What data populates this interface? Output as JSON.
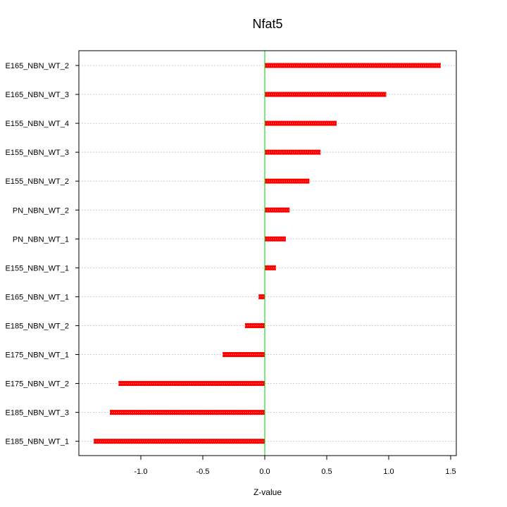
{
  "chart_data": {
    "type": "bar",
    "orientation": "horizontal",
    "title": "Nfat5",
    "xlabel": "Z-value",
    "ylabel": "",
    "xlim": [
      -1.45,
      1.5
    ],
    "x_ticks": [
      -1.0,
      -0.5,
      0.0,
      0.5,
      1.0,
      1.5
    ],
    "x_tick_labels": [
      "-1.0",
      "-0.5",
      "0.0",
      "0.5",
      "1.0",
      "1.5"
    ],
    "categories": [
      "E165_NBN_WT_2",
      "E165_NBN_WT_3",
      "E155_NBN_WT_4",
      "E155_NBN_WT_3",
      "E155_NBN_WT_2",
      "PN_NBN_WT_2",
      "PN_NBN_WT_1",
      "E155_NBN_WT_1",
      "E165_NBN_WT_1",
      "E185_NBN_WT_2",
      "E175_NBN_WT_1",
      "E175_NBN_WT_2",
      "E185_NBN_WT_3",
      "E185_NBN_WT_1"
    ],
    "values": [
      1.42,
      0.98,
      0.58,
      0.45,
      0.36,
      0.2,
      0.17,
      0.09,
      -0.05,
      -0.16,
      -0.34,
      -1.18,
      -1.25,
      -1.38
    ],
    "grid": true,
    "bar_color": "#ff0000",
    "zero_line_color": "#00cc00",
    "grid_color": "#cccccc"
  }
}
